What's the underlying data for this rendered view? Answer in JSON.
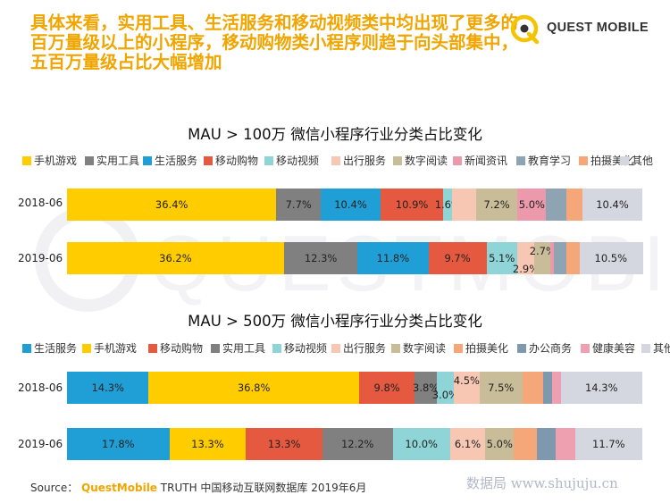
{
  "headline": {
    "line1": "具体来看，实用工具、生活服务和移动视频类中均出现了更多的",
    "line2": "百万量级以上的小程序，移动购物类小程序则趋于向头部集中，",
    "line3": "五百万量级占比大幅增加"
  },
  "logo": {
    "text": "QUEST MOBILE"
  },
  "watermark": {
    "text": "QUESTMOBILE"
  },
  "colors": {
    "yellow": "#ffcc00",
    "gray": "#808080",
    "blue": "#1f9fd6",
    "red": "#e4593f",
    "teal": "#8fd4d6",
    "peach": "#f8c7b4",
    "tan": "#c8bd98",
    "pink": "#ec99ab",
    "slate": "#8fa4b2",
    "orange": "#f5a77a",
    "lightgray": "#d4d7e0",
    "steel": "#7e98ad",
    "rose": "#eea0b0",
    "headline": "#f0a500"
  },
  "chart_data": [
    {
      "type": "bar",
      "stacked": "100%",
      "orientation": "horizontal",
      "title": "MAU > 100万 微信小程序行业分类占比变化",
      "categories": [
        "2018-06",
        "2019-06"
      ],
      "legend_position": "top",
      "series": [
        {
          "name": "手机游戏",
          "color": "#ffcc00",
          "values": [
            36.4,
            36.2
          ],
          "labels": [
            "36.4%",
            "36.2%"
          ]
        },
        {
          "name": "实用工具",
          "color": "#808080",
          "values": [
            7.7,
            12.3
          ],
          "labels": [
            "7.7%",
            "12.3%"
          ]
        },
        {
          "name": "生活服务",
          "color": "#1f9fd6",
          "values": [
            10.4,
            11.8
          ],
          "labels": [
            "10.4%",
            "11.8%"
          ]
        },
        {
          "name": "移动购物",
          "color": "#e4593f",
          "values": [
            10.9,
            9.7
          ],
          "labels": [
            "10.9%",
            "9.7%"
          ]
        },
        {
          "name": "移动视频",
          "color": "#8fd4d6",
          "values": [
            1.6,
            5.1
          ],
          "labels": [
            "1.6%",
            "5.1%"
          ]
        },
        {
          "name": "出行服务",
          "color": "#f8c7b4",
          "values": [
            4.1,
            2.9
          ],
          "labels": [
            "",
            "2.9%"
          ]
        },
        {
          "name": "数字阅读",
          "color": "#c8bd98",
          "values": [
            7.2,
            2.7
          ],
          "labels": [
            "7.2%",
            "2.7%"
          ]
        },
        {
          "name": "新闻资讯",
          "color": "#ec99ab",
          "values": [
            5.0,
            0.5
          ],
          "labels": [
            "5.0%",
            ""
          ]
        },
        {
          "name": "教育学习",
          "color": "#8fa4b2",
          "values": [
            3.5,
            2.2
          ],
          "labels": [
            "",
            ""
          ]
        },
        {
          "name": "拍摄美化",
          "color": "#f5a77a",
          "values": [
            2.8,
            2.1
          ],
          "labels": [
            "",
            ""
          ]
        },
        {
          "name": "其他",
          "color": "#d4d7e0",
          "values": [
            10.4,
            10.5
          ],
          "labels": [
            "10.4%",
            "10.5%"
          ]
        }
      ]
    },
    {
      "type": "bar",
      "stacked": "100%",
      "orientation": "horizontal",
      "title": "MAU > 500万 微信小程序行业分类占比变化",
      "categories": [
        "2018-06",
        "2019-06"
      ],
      "legend_position": "top",
      "series": [
        {
          "name": "生活服务",
          "color": "#1f9fd6",
          "values": [
            14.3,
            17.8
          ],
          "labels": [
            "14.3%",
            "17.8%"
          ]
        },
        {
          "name": "手机游戏",
          "color": "#ffcc00",
          "values": [
            36.8,
            13.3
          ],
          "labels": [
            "36.8%",
            "13.3%"
          ]
        },
        {
          "name": "移动购物",
          "color": "#e4593f",
          "values": [
            9.8,
            13.3
          ],
          "labels": [
            "9.8%",
            "13.3%"
          ]
        },
        {
          "name": "实用工具",
          "color": "#808080",
          "values": [
            3.8,
            12.2
          ],
          "labels": [
            "3.8%",
            "12.2%"
          ]
        },
        {
          "name": "移动视频",
          "color": "#8fd4d6",
          "values": [
            3.0,
            10.0
          ],
          "labels": [
            "3.0%",
            "10.0%"
          ]
        },
        {
          "name": "出行服务",
          "color": "#f8c7b4",
          "values": [
            4.5,
            6.1
          ],
          "labels": [
            "4.5%",
            "6.1%"
          ]
        },
        {
          "name": "数字阅读",
          "color": "#c8bd98",
          "values": [
            7.5,
            5.0
          ],
          "labels": [
            "7.5%",
            "5.0%"
          ]
        },
        {
          "name": "拍摄美化",
          "color": "#f5a77a",
          "values": [
            3.7,
            3.9
          ],
          "labels": [
            "",
            ""
          ]
        },
        {
          "name": "办公商务",
          "color": "#7e98ad",
          "values": [
            1.5,
            3.3
          ],
          "labels": [
            "",
            ""
          ]
        },
        {
          "name": "健康美容",
          "color": "#eea0b0",
          "values": [
            1.5,
            3.4
          ],
          "labels": [
            "",
            ""
          ]
        },
        {
          "name": "其他",
          "color": "#d4d7e0",
          "values": [
            14.3,
            11.7
          ],
          "labels": [
            "14.3%",
            "11.7%"
          ]
        }
      ]
    }
  ],
  "source": {
    "prefix": "Source：",
    "brand": "QuestMobile",
    "rest": "TRUTH 中国移动互联网数据库 2019年6月"
  },
  "site_watermark": "数据局 www.shujuju.cn"
}
